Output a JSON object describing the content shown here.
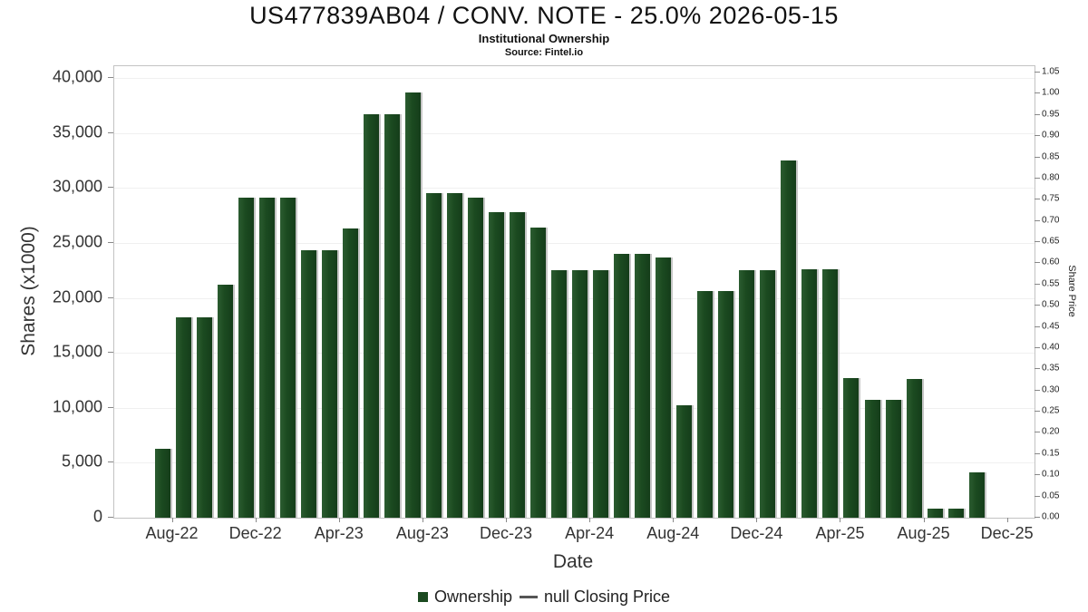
{
  "chart_data": {
    "type": "bar",
    "title": "US477839AB04 / CONV. NOTE - 25.0% 2026-05-15",
    "subtitle": "Institutional Ownership",
    "source": "Source: Fintel.io",
    "xlabel": "Date",
    "ylabel_left": "Shares (x1000)",
    "ylabel_right": "Share Price",
    "bar_color": "#1b4a20",
    "grid": "faint-horizontal",
    "legend_position": "bottom-center",
    "y_left_max": 40000,
    "y_right_max": 1.05,
    "categories": [
      "Aug-22",
      "Sep-22",
      "Oct-22",
      "Nov-22",
      "Dec-22",
      "Jan-23",
      "Feb-23",
      "Mar-23",
      "Apr-23",
      "May-23",
      "Jun-23",
      "Jul-23",
      "Aug-23",
      "Sep-23",
      "Oct-23",
      "Nov-23",
      "Dec-23",
      "Jan-24",
      "Feb-24",
      "Mar-24",
      "Apr-24",
      "May-24",
      "Jun-24",
      "Jul-24",
      "Aug-24",
      "Sep-24",
      "Oct-24",
      "Nov-24",
      "Dec-24",
      "Jan-25",
      "Feb-25",
      "Mar-25",
      "Apr-25",
      "May-25",
      "Jun-25",
      "Jul-25",
      "Aug-25",
      "Sep-25",
      "Oct-25",
      "Nov-25"
    ],
    "values": [
      6300,
      18200,
      18200,
      21200,
      29100,
      29100,
      29100,
      24300,
      24300,
      26300,
      36700,
      36700,
      38700,
      29500,
      29500,
      29100,
      27800,
      27800,
      26400,
      22500,
      22500,
      22500,
      24000,
      24000,
      23700,
      10200,
      20600,
      20600,
      22500,
      22500,
      32500,
      22600,
      22600,
      12700,
      10700,
      10700,
      12600,
      800,
      800,
      4100
    ],
    "y_left_ticks": [
      "0",
      "5,000",
      "10,000",
      "15,000",
      "20,000",
      "25,000",
      "30,000",
      "35,000",
      "40,000"
    ],
    "y_right_ticks": [
      "0.00",
      "0.05",
      "0.10",
      "0.15",
      "0.20",
      "0.25",
      "0.30",
      "0.35",
      "0.40",
      "0.45",
      "0.50",
      "0.55",
      "0.60",
      "0.65",
      "0.70",
      "0.75",
      "0.80",
      "0.85",
      "0.90",
      "0.95",
      "1.00",
      "1.05"
    ],
    "x_ticks": [
      {
        "label": "Aug-22",
        "m": 0
      },
      {
        "label": "Dec-22",
        "m": 4
      },
      {
        "label": "Apr-23",
        "m": 8
      },
      {
        "label": "Aug-23",
        "m": 12
      },
      {
        "label": "Dec-23",
        "m": 16
      },
      {
        "label": "Apr-24",
        "m": 20
      },
      {
        "label": "Aug-24",
        "m": 24
      },
      {
        "label": "Dec-24",
        "m": 28
      },
      {
        "label": "Apr-25",
        "m": 32
      },
      {
        "label": "Aug-25",
        "m": 36
      },
      {
        "label": "Dec-25",
        "m": 40
      }
    ],
    "legend": [
      {
        "label": "Ownership",
        "swatch": "square",
        "color": "#1b4a20"
      },
      {
        "label": "null Closing Price",
        "swatch": "line",
        "color": "#555555"
      }
    ]
  }
}
